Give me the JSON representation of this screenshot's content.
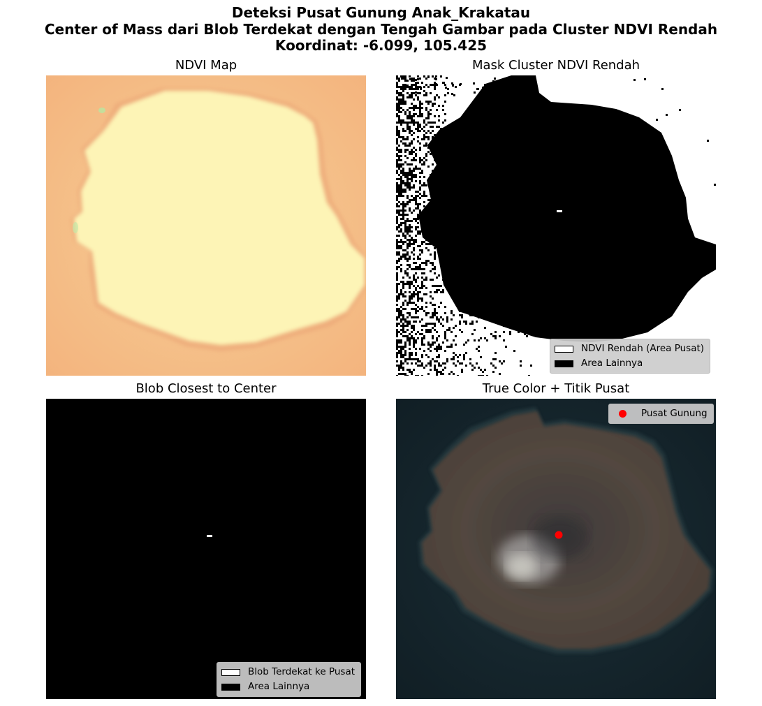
{
  "figure": {
    "title_line1": "Deteksi Pusat Gunung Anak_Krakatau",
    "title_line2": "Center of Mass dari Blob Terdekat dengan Tengah Gambar pada Cluster NDVI Rendah",
    "title_line3": "Koordinat: -6.099, 105.425"
  },
  "panels": {
    "ndvi": {
      "title": "NDVI Map"
    },
    "mask": {
      "title": "Mask Cluster NDVI Rendah",
      "legend": [
        "NDVI Rendah (Area Pusat)",
        "Area Lainnya"
      ]
    },
    "blob": {
      "title": "Blob Closest to Center",
      "legend": [
        "Blob Terdekat ke Pusat",
        "Area Lainnya"
      ]
    },
    "truecolor": {
      "title": "True Color + Titik Pusat",
      "legend": [
        "Pusat Gunung"
      ],
      "marker_color": "#ff0000"
    }
  },
  "colors": {
    "ndvi_background": "#f5c690",
    "ndvi_island": "#fdf4b6",
    "sea": "#16262d",
    "island_rock": "#4f463e",
    "marker": "#ff0000"
  }
}
